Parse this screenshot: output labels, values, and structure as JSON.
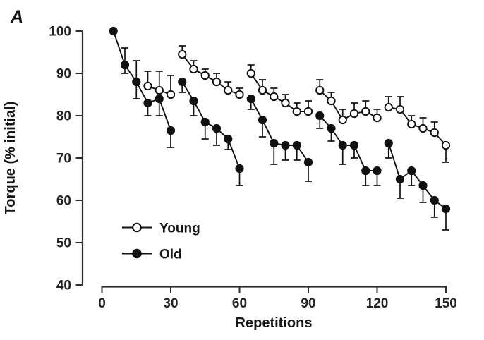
{
  "figure": {
    "panel_label": "A"
  },
  "chart_data": {
    "type": "line",
    "panel_label": "A",
    "xlabel": "Repetitions",
    "ylabel": "Torque (% initial)",
    "xlim": [
      0,
      150
    ],
    "ylim": [
      40,
      100
    ],
    "xticks": [
      0,
      30,
      60,
      90,
      120,
      150
    ],
    "yticks": [
      100,
      90,
      80,
      70,
      60,
      50,
      40
    ],
    "grid": false,
    "legend": {
      "position": "lower-left",
      "items": [
        {
          "label": "Young",
          "marker": "open-circle"
        },
        {
          "label": "Old",
          "marker": "filled-circle"
        }
      ]
    },
    "point_format": [
      "repetition",
      "torque_pct_initial",
      "err_up",
      "err_down"
    ],
    "series": [
      {
        "name": "Young",
        "marker": "open",
        "blocks": [
          [
            [
              20,
              87,
              3.5,
              0
            ],
            [
              25,
              86,
              4.5,
              0
            ],
            [
              30,
              85,
              4.5,
              0
            ]
          ],
          [
            [
              35,
              94.5,
              2,
              0
            ],
            [
              40,
              91,
              2,
              0
            ],
            [
              45,
              89.5,
              1.5,
              0
            ],
            [
              50,
              88,
              2,
              0
            ],
            [
              55,
              86,
              2,
              0
            ],
            [
              60,
              85,
              1.5,
              0
            ]
          ],
          [
            [
              65,
              90,
              2,
              0
            ],
            [
              70,
              86,
              2.5,
              0
            ],
            [
              75,
              84.5,
              2,
              0
            ],
            [
              80,
              83,
              2,
              0
            ],
            [
              85,
              81,
              2,
              0
            ],
            [
              90,
              81,
              2.5,
              0
            ]
          ],
          [
            [
              95,
              86,
              2.5,
              0
            ],
            [
              100,
              83.5,
              2,
              0
            ],
            [
              105,
              79,
              2.5,
              0
            ],
            [
              110,
              80.5,
              2.5,
              0
            ],
            [
              115,
              81,
              2.5,
              0
            ],
            [
              120,
              79.5,
              2,
              0
            ]
          ],
          [
            [
              125,
              82,
              2.5,
              0
            ],
            [
              130,
              81.5,
              3,
              0
            ],
            [
              135,
              78,
              2,
              0
            ],
            [
              140,
              77,
              2.5,
              0
            ],
            [
              145,
              76,
              2.5,
              0
            ],
            [
              150,
              73,
              0,
              4
            ]
          ]
        ]
      },
      {
        "name": "Old",
        "marker": "filled",
        "blocks": [
          [
            [
              5,
              100,
              0,
              0
            ],
            [
              10,
              92,
              4,
              2
            ],
            [
              15,
              88,
              5,
              4
            ],
            [
              20,
              83,
              0,
              3
            ],
            [
              25,
              84,
              0,
              4
            ],
            [
              30,
              76.5,
              0,
              4
            ]
          ],
          [
            [
              35,
              88,
              0,
              2.5
            ],
            [
              40,
              83.5,
              0,
              3.5
            ],
            [
              45,
              78.5,
              0,
              4
            ],
            [
              50,
              77,
              0,
              4
            ],
            [
              55,
              74.5,
              0,
              2.5
            ],
            [
              60,
              67.5,
              0,
              4
            ]
          ],
          [
            [
              65,
              84,
              0,
              2.5
            ],
            [
              70,
              79,
              0,
              4
            ],
            [
              75,
              73.5,
              0,
              5
            ],
            [
              80,
              73,
              0,
              3.5
            ],
            [
              85,
              73,
              0,
              3.5
            ],
            [
              90,
              69,
              0,
              4.5
            ]
          ],
          [
            [
              95,
              80,
              0,
              3
            ],
            [
              100,
              77,
              0,
              3
            ],
            [
              105,
              73,
              0,
              4.5
            ],
            [
              110,
              73,
              0,
              3
            ],
            [
              115,
              67,
              0,
              3.5
            ],
            [
              120,
              67,
              0,
              3.5
            ]
          ],
          [
            [
              125,
              73.5,
              0,
              3.5
            ],
            [
              130,
              65,
              0,
              4.5
            ],
            [
              135,
              67,
              0,
              3.5
            ],
            [
              140,
              63.5,
              0,
              4
            ],
            [
              145,
              60,
              0,
              4
            ],
            [
              150,
              58,
              0,
              5
            ]
          ]
        ]
      }
    ]
  },
  "colors": {
    "ink": "#111111",
    "axis": "#2d2d2d",
    "background": "#ffffff"
  }
}
